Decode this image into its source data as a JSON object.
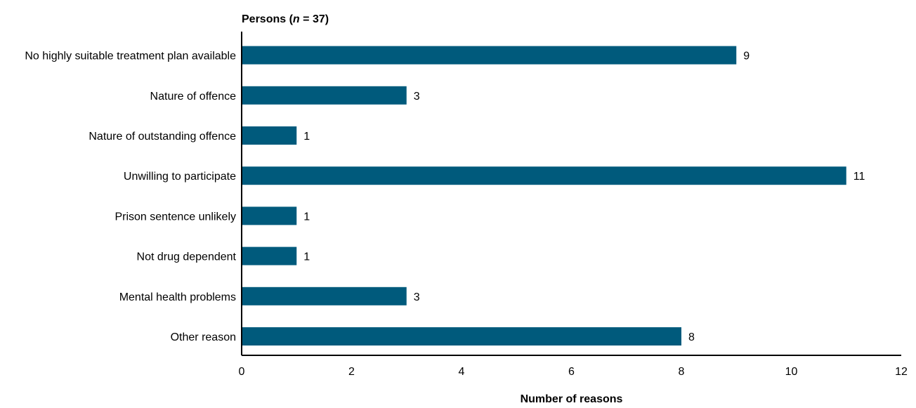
{
  "chart_data": {
    "type": "bar",
    "orientation": "horizontal",
    "title_prefix": "Persons (",
    "title_n": "n",
    "title_suffix": " = 37)",
    "categories": [
      "No highly suitable treatment plan available",
      "Nature of offence",
      "Nature of outstanding offence",
      "Unwilling to participate",
      "Prison sentence unlikely",
      "Not drug dependent",
      "Mental health problems",
      "Other reason"
    ],
    "values": [
      9,
      3,
      1,
      11,
      1,
      1,
      3,
      8
    ],
    "xlabel": "Number of reasons",
    "ylabel": "",
    "xlim": [
      0,
      12
    ],
    "xticks": [
      0,
      2,
      4,
      6,
      8,
      10,
      12
    ],
    "grid": false,
    "legend": "none",
    "bar_color": "#005a7c"
  }
}
